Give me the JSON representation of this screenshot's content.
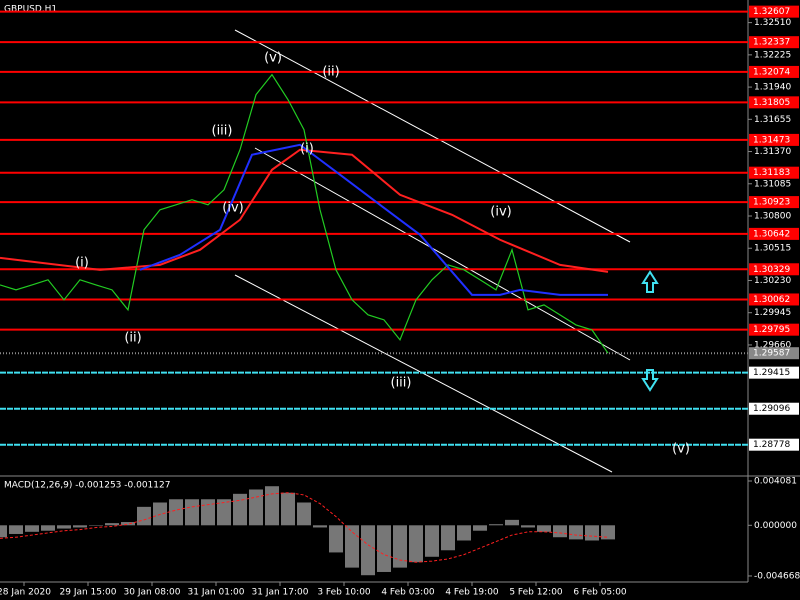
{
  "chart_data": [
    {
      "type": "line",
      "title": "GBPUSD,H1",
      "xlim": [
        0,
        187
      ],
      "ylim": [
        1.2851,
        1.3271
      ],
      "yticks": [
        {
          "value": 1.3251,
          "label": "1.32510"
        },
        {
          "value": 1.32225,
          "label": "1.32225"
        },
        {
          "value": 1.3194,
          "label": "1.31940"
        },
        {
          "value": 1.31655,
          "label": "1.31655"
        },
        {
          "value": 1.3137,
          "label": "1.31370"
        },
        {
          "value": 1.31085,
          "label": "1.31085"
        },
        {
          "value": 1.308,
          "label": "1.30800"
        },
        {
          "value": 1.30515,
          "label": "1.30515"
        },
        {
          "value": 1.3023,
          "label": "1.30230"
        },
        {
          "value": 1.29945,
          "label": "1.29945"
        },
        {
          "value": 1.2966,
          "label": "1.29660"
        }
      ],
      "xticks": [
        {
          "value": 6,
          "label": "28 Jan 2020"
        },
        {
          "value": 22,
          "label": "29 Jan 15:00"
        },
        {
          "value": 38,
          "label": "30 Jan 08:00"
        },
        {
          "value": 54,
          "label": "31 Jan 01:00"
        },
        {
          "value": 70,
          "label": "31 Jan 17:00"
        },
        {
          "value": 86,
          "label": "3 Feb 10:00"
        },
        {
          "value": 102,
          "label": "4 Feb 03:00"
        },
        {
          "value": 118,
          "label": "4 Feb 19:00"
        },
        {
          "value": 134,
          "label": "5 Feb 12:00"
        },
        {
          "value": 150,
          "label": "6 Feb 05:00"
        }
      ],
      "levels": [
        {
          "value": 1.32607,
          "label": "1.32607"
        },
        {
          "value": 1.32337,
          "label": "1.32337"
        },
        {
          "value": 1.32074,
          "label": "1.32074"
        },
        {
          "value": 1.31805,
          "label": "1.31805"
        },
        {
          "value": 1.31473,
          "label": "1.31473"
        },
        {
          "value": 1.31183,
          "label": "1.31183"
        },
        {
          "value": 1.30923,
          "label": "1.30923"
        },
        {
          "value": 1.30642,
          "label": "1.30642"
        },
        {
          "value": 1.30329,
          "label": "1.30329"
        },
        {
          "value": 1.30062,
          "label": "1.30062"
        },
        {
          "value": 1.29795,
          "label": "1.29795"
        }
      ],
      "level_color": "#ff0000",
      "support_levels": [
        {
          "value": 1.29415,
          "label": "1.29415"
        },
        {
          "value": 1.29096,
          "label": "1.29096"
        },
        {
          "value": 1.28778,
          "label": "1.28778"
        }
      ],
      "support_color": "#40e0f0",
      "current_price": {
        "value": 1.29587,
        "label": "1.29587"
      },
      "annotations": [
        "(v)",
        "(ii)",
        "(iii)",
        "(i)",
        "(iv)",
        "(iv)",
        "(i)",
        "(ii)",
        "(iii)",
        "(v)"
      ],
      "series": [
        {
          "color": "#22cc22",
          "x": [
            0,
            4,
            8,
            12,
            16,
            20,
            24,
            28,
            32,
            36,
            40,
            44,
            48,
            52,
            56,
            60,
            64,
            68,
            72,
            76,
            80,
            84,
            88,
            92,
            96,
            100,
            104,
            108,
            112,
            116,
            120,
            124,
            128,
            132,
            136,
            140,
            144,
            148,
            152
          ],
          "values": [
            1.30191,
            1.30147,
            1.30191,
            1.30236,
            1.30059,
            1.30236,
            1.30191,
            1.30147,
            1.2997,
            1.30678,
            1.30855,
            1.30899,
            1.30944,
            1.30899,
            1.31032,
            1.31386,
            1.31873,
            1.3205,
            1.31829,
            1.31563,
            1.30855,
            1.30324,
            1.30059,
            1.29926,
            1.29882,
            1.29705,
            1.30059,
            1.30236,
            1.30368,
            1.30324,
            1.30236,
            1.30147,
            1.30501,
            1.2997,
            1.30014,
            1.29926,
            1.29837,
            1.29793,
            1.29587
          ]
        },
        {
          "color": "#ff2020",
          "x": [
            0,
            25,
            40,
            50,
            60,
            68,
            75,
            88,
            100,
            113,
            125,
            140,
            152
          ],
          "values": [
            1.3043,
            1.30324,
            1.30368,
            1.30501,
            1.30767,
            1.31209,
            1.31386,
            1.31342,
            1.30988,
            1.30811,
            1.3059,
            1.30368,
            1.30306
          ]
        },
        {
          "color": "#2030ff",
          "x": [
            35,
            45,
            55,
            63,
            75,
            85,
            95,
            105,
            118,
            125,
            130,
            140,
            152
          ],
          "values": [
            1.30324,
            1.30457,
            1.30678,
            1.31342,
            1.3143,
            1.31165,
            1.30899,
            1.30634,
            1.30103,
            1.30103,
            1.30147,
            1.30103,
            1.30103
          ]
        }
      ]
    },
    {
      "type": "bar",
      "title": "MACD(12,26,9) -0.001253 -0.001127",
      "ylim": [
        -0.00504,
        0.00445
      ],
      "yticks": [
        {
          "value": 0.004081,
          "label": "0.004081"
        },
        {
          "value": 0,
          "label": "0.000000"
        },
        {
          "value": -0.004668,
          "label": "-0.004668"
        }
      ],
      "x": [
        0,
        4,
        8,
        12,
        16,
        20,
        24,
        28,
        32,
        36,
        40,
        44,
        48,
        52,
        56,
        60,
        64,
        68,
        72,
        76,
        80,
        84,
        88,
        92,
        96,
        100,
        104,
        108,
        112,
        116,
        120,
        124,
        128,
        132,
        136,
        140,
        144,
        148,
        152
      ],
      "series": [
        {
          "color": "#d8d8d8",
          "values": [
            -0.0011,
            -0.0008,
            -0.0006,
            -0.0005,
            -0.0003,
            -0.0002,
            0,
            0.0002,
            0.0003,
            0.0017,
            0.0021,
            0.0024,
            0.0024,
            0.0024,
            0.0024,
            0.0029,
            0.0033,
            0.0036,
            0.003,
            0.0021,
            -0.0002,
            -0.0025,
            -0.0039,
            -0.0046,
            -0.0043,
            -0.0039,
            -0.0034,
            -0.0029,
            -0.0023,
            -0.0014,
            -0.0005,
            0.0001,
            0.0005,
            -0.0002,
            -0.0006,
            -0.0011,
            -0.0013,
            -0.0014,
            -0.0013
          ]
        },
        {
          "color": "#ff2020",
          "type": "line",
          "values": [
            -0.0012,
            -0.0011,
            -0.0009,
            -0.0007,
            -0.0005,
            -0.0004,
            -0.0002,
            -0.0001,
            0.0001,
            0.0005,
            0.001,
            0.0014,
            0.0017,
            0.0019,
            0.0021,
            0.0023,
            0.0026,
            0.0029,
            0.003,
            0.0028,
            0.002,
            0.0008,
            -0.0006,
            -0.0018,
            -0.0027,
            -0.0032,
            -0.0034,
            -0.0033,
            -0.0031,
            -0.0027,
            -0.0021,
            -0.0015,
            -0.0009,
            -0.0006,
            -0.0006,
            -0.0007,
            -0.0009,
            -0.001,
            -0.0011
          ]
        }
      ]
    }
  ]
}
